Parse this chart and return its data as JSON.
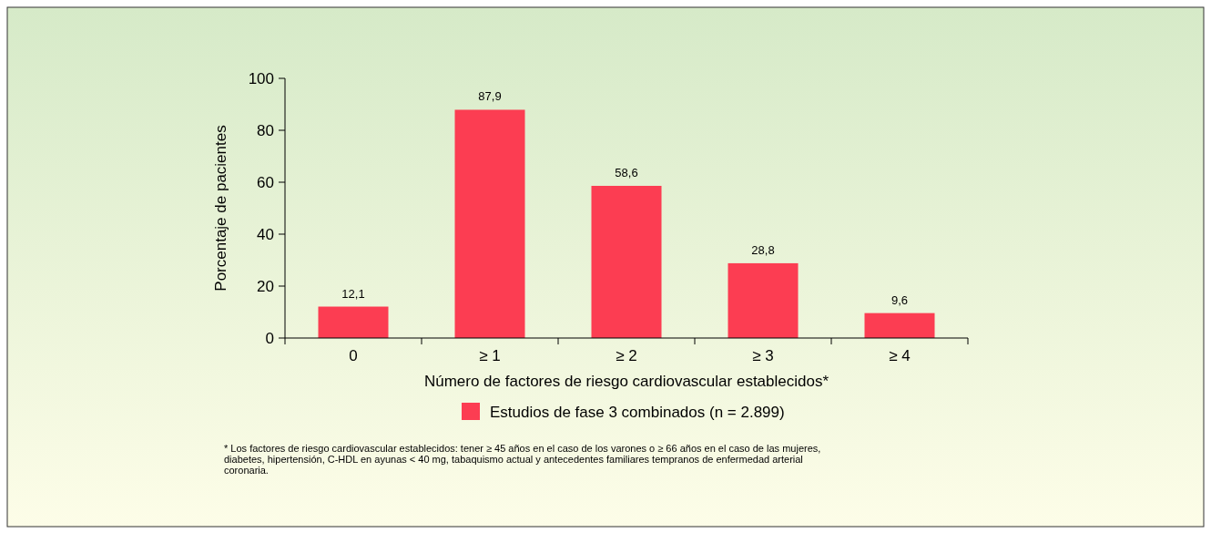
{
  "chart_data": {
    "type": "bar",
    "categories": [
      "0",
      "≥ 1",
      "≥ 2",
      "≥ 3",
      "≥ 4"
    ],
    "series": [
      {
        "name": "Estudios de fase 3 combinados (n = 2.899)",
        "color": "#fc3d52",
        "values": [
          12.1,
          87.9,
          58.6,
          28.8,
          9.6
        ],
        "value_labels": [
          "12,1",
          "87,9",
          "58,6",
          "28,8",
          "9,6"
        ]
      }
    ],
    "ylim": [
      0,
      100
    ],
    "yticks": [
      0,
      20,
      40,
      60,
      80,
      100
    ],
    "xlabel": "Número de factores de riesgo cardiovascular establecidos*",
    "ylabel": "Porcentaje de pacientes",
    "legend": "bottom",
    "grid": false,
    "annotations": [
      "* Los factores de riesgo cardiovascular establecidos: tener ≥ 45 años en el caso de los varones o ≥ 66 años en el caso de las mujeres, diabetes, hipertensión, C-HDL en ayunas < 40 mg, tabaquismo actual y antecedentes familiares tempranos de enfermedad arterial coronaria."
    ]
  }
}
